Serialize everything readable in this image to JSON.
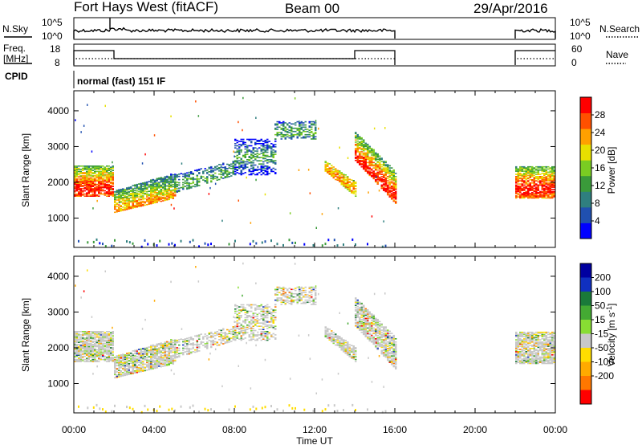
{
  "header": {
    "title": "Fort Hays West (fitACF)",
    "beam": "Beam 00",
    "date": "29/Apr/2016"
  },
  "summary": {
    "nsky_label": "N.Sky",
    "nsearch_label": "N.Search",
    "left_ticks": [
      "10^5",
      "10^0"
    ],
    "right_ticks": [
      "10^5",
      "10^0"
    ],
    "freq_label_1": "Freq.",
    "freq_label_2": "[MHz]",
    "freq_ticks": [
      "18",
      "8"
    ],
    "nave_label": "Nave",
    "nave_ticks": [
      "60",
      "0"
    ],
    "cpid_label": "CPID",
    "cpid_value": "normal (fast) 151 IF"
  },
  "colors": {
    "power_scale": [
      "#0000ff",
      "#2050b0",
      "#2f7f7f",
      "#3a9a3a",
      "#7acc22",
      "#e8e000",
      "#ffa000",
      "#ff5000",
      "#ff0000"
    ],
    "velocity_scale": [
      "#0000a0",
      "#1030c0",
      "#1a7a3a",
      "#44aa33",
      "#88dd33",
      "#c8c8c8",
      "#ffdd00",
      "#ffaa00",
      "#ff7700",
      "#ff0000"
    ]
  },
  "chart_data": [
    {
      "type": "heatmap",
      "name": "power",
      "xlabel": "",
      "ylabel": "Slant Range [km]",
      "x_ticks": [
        "00:00",
        "04:00",
        "08:00",
        "12:00",
        "16:00",
        "20:00",
        "00:00"
      ],
      "x_range_hours": [
        0,
        24
      ],
      "y_range_km": [
        180,
        4560
      ],
      "y_ticks": [
        1000,
        2000,
        3000,
        4000
      ],
      "colorbar": {
        "label": "Power [dB]",
        "ticks": [
          4,
          8,
          12,
          16,
          20,
          24,
          28
        ],
        "range": [
          0,
          32
        ]
      },
      "echo_regions": [
        {
          "t0": 0.0,
          "t1": 2.0,
          "r0": 1600,
          "r1": 2450,
          "core": 1800,
          "level": "high"
        },
        {
          "t0": 2.0,
          "t1": 5.0,
          "r0": 1150,
          "r1": 1900,
          "core": 1300,
          "level": "mid"
        },
        {
          "t0": 5.0,
          "t1": 8.0,
          "r0": 1800,
          "r1": 2400,
          "core": 2000,
          "level": "low"
        },
        {
          "t0": 8.0,
          "t1": 10.0,
          "r0": 2200,
          "r1": 3200,
          "core": 2700,
          "level": "low"
        },
        {
          "t0": 10.0,
          "t1": 12.0,
          "r0": 3200,
          "r1": 3700,
          "core": 3400,
          "level": "low"
        },
        {
          "t0": 12.5,
          "t1": 14.0,
          "r0": 1700,
          "r1": 2400,
          "core": 2000,
          "level": "mid"
        },
        {
          "t0": 14.0,
          "t1": 16.0,
          "r0": 1400,
          "r1": 3400,
          "core": 1900,
          "level": "high"
        },
        {
          "t0": 22.0,
          "t1": 24.0,
          "r0": 1550,
          "r1": 2450,
          "core": 1800,
          "level": "high"
        }
      ]
    },
    {
      "type": "heatmap",
      "name": "velocity",
      "xlabel": "Time UT",
      "ylabel": "Slant Range [km]",
      "x_ticks": [
        "00:00",
        "04:00",
        "08:00",
        "12:00",
        "16:00",
        "20:00",
        "00:00"
      ],
      "x_range_hours": [
        0,
        24
      ],
      "y_range_km": [
        180,
        4560
      ],
      "y_ticks": [
        1000,
        2000,
        3000,
        4000
      ],
      "colorbar": {
        "label": "Velocity [m s",
        "label_sup": "-1",
        "label_end": "]",
        "ticks": [
          "200",
          "100",
          "50",
          "15",
          "-15",
          "-50",
          "-100",
          "-200"
        ]
      }
    }
  ]
}
